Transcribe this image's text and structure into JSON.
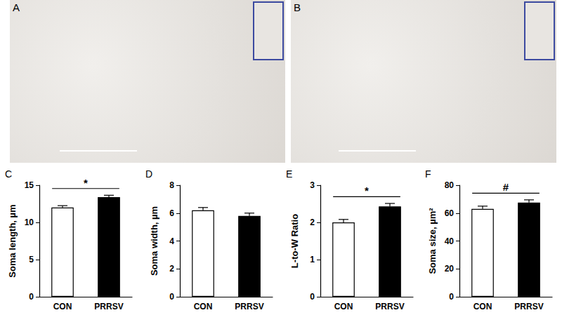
{
  "images": [
    {
      "label": "A"
    },
    {
      "label": "B"
    }
  ],
  "chart_data": [
    {
      "type": "bar",
      "title": "C",
      "y_label": "Soma length, µm",
      "categories": [
        "CON",
        "PRRSV"
      ],
      "values": [
        12.0,
        13.4
      ],
      "errors": [
        0.25,
        0.25
      ],
      "colors": [
        "#ffffff",
        "#000000"
      ],
      "ylim": [
        0,
        15
      ],
      "yticks": [
        0,
        5,
        10,
        15
      ],
      "grid": false,
      "annotations": [
        {
          "text": "*",
          "from": "CON",
          "to": "PRRSV"
        }
      ]
    },
    {
      "type": "bar",
      "title": "D",
      "y_label": "Soma width, µm",
      "categories": [
        "CON",
        "PRRSV"
      ],
      "values": [
        6.2,
        5.8
      ],
      "errors": [
        0.2,
        0.2
      ],
      "colors": [
        "#ffffff",
        "#000000"
      ],
      "ylim": [
        0,
        8
      ],
      "yticks": [
        0,
        2,
        4,
        6,
        8
      ],
      "grid": false,
      "annotations": []
    },
    {
      "type": "bar",
      "title": "E",
      "y_label": "L-to-W Ratio",
      "categories": [
        "CON",
        "PRRSV"
      ],
      "values": [
        2.0,
        2.43
      ],
      "errors": [
        0.08,
        0.08
      ],
      "colors": [
        "#ffffff",
        "#000000"
      ],
      "ylim": [
        0,
        3
      ],
      "yticks": [
        0,
        1,
        2,
        3
      ],
      "grid": false,
      "annotations": [
        {
          "text": "*",
          "from": "CON",
          "to": "PRRSV"
        }
      ]
    },
    {
      "type": "bar",
      "title": "F",
      "y_label": "Soma size, µm²",
      "categories": [
        "CON",
        "PRRSV"
      ],
      "values": [
        63,
        67.5
      ],
      "errors": [
        2,
        2
      ],
      "colors": [
        "#ffffff",
        "#000000"
      ],
      "ylim": [
        0,
        80
      ],
      "yticks": [
        0,
        20,
        40,
        60,
        80
      ],
      "grid": false,
      "annotations": [
        {
          "text": "#",
          "from": "CON",
          "to": "PRRSV"
        }
      ]
    }
  ]
}
